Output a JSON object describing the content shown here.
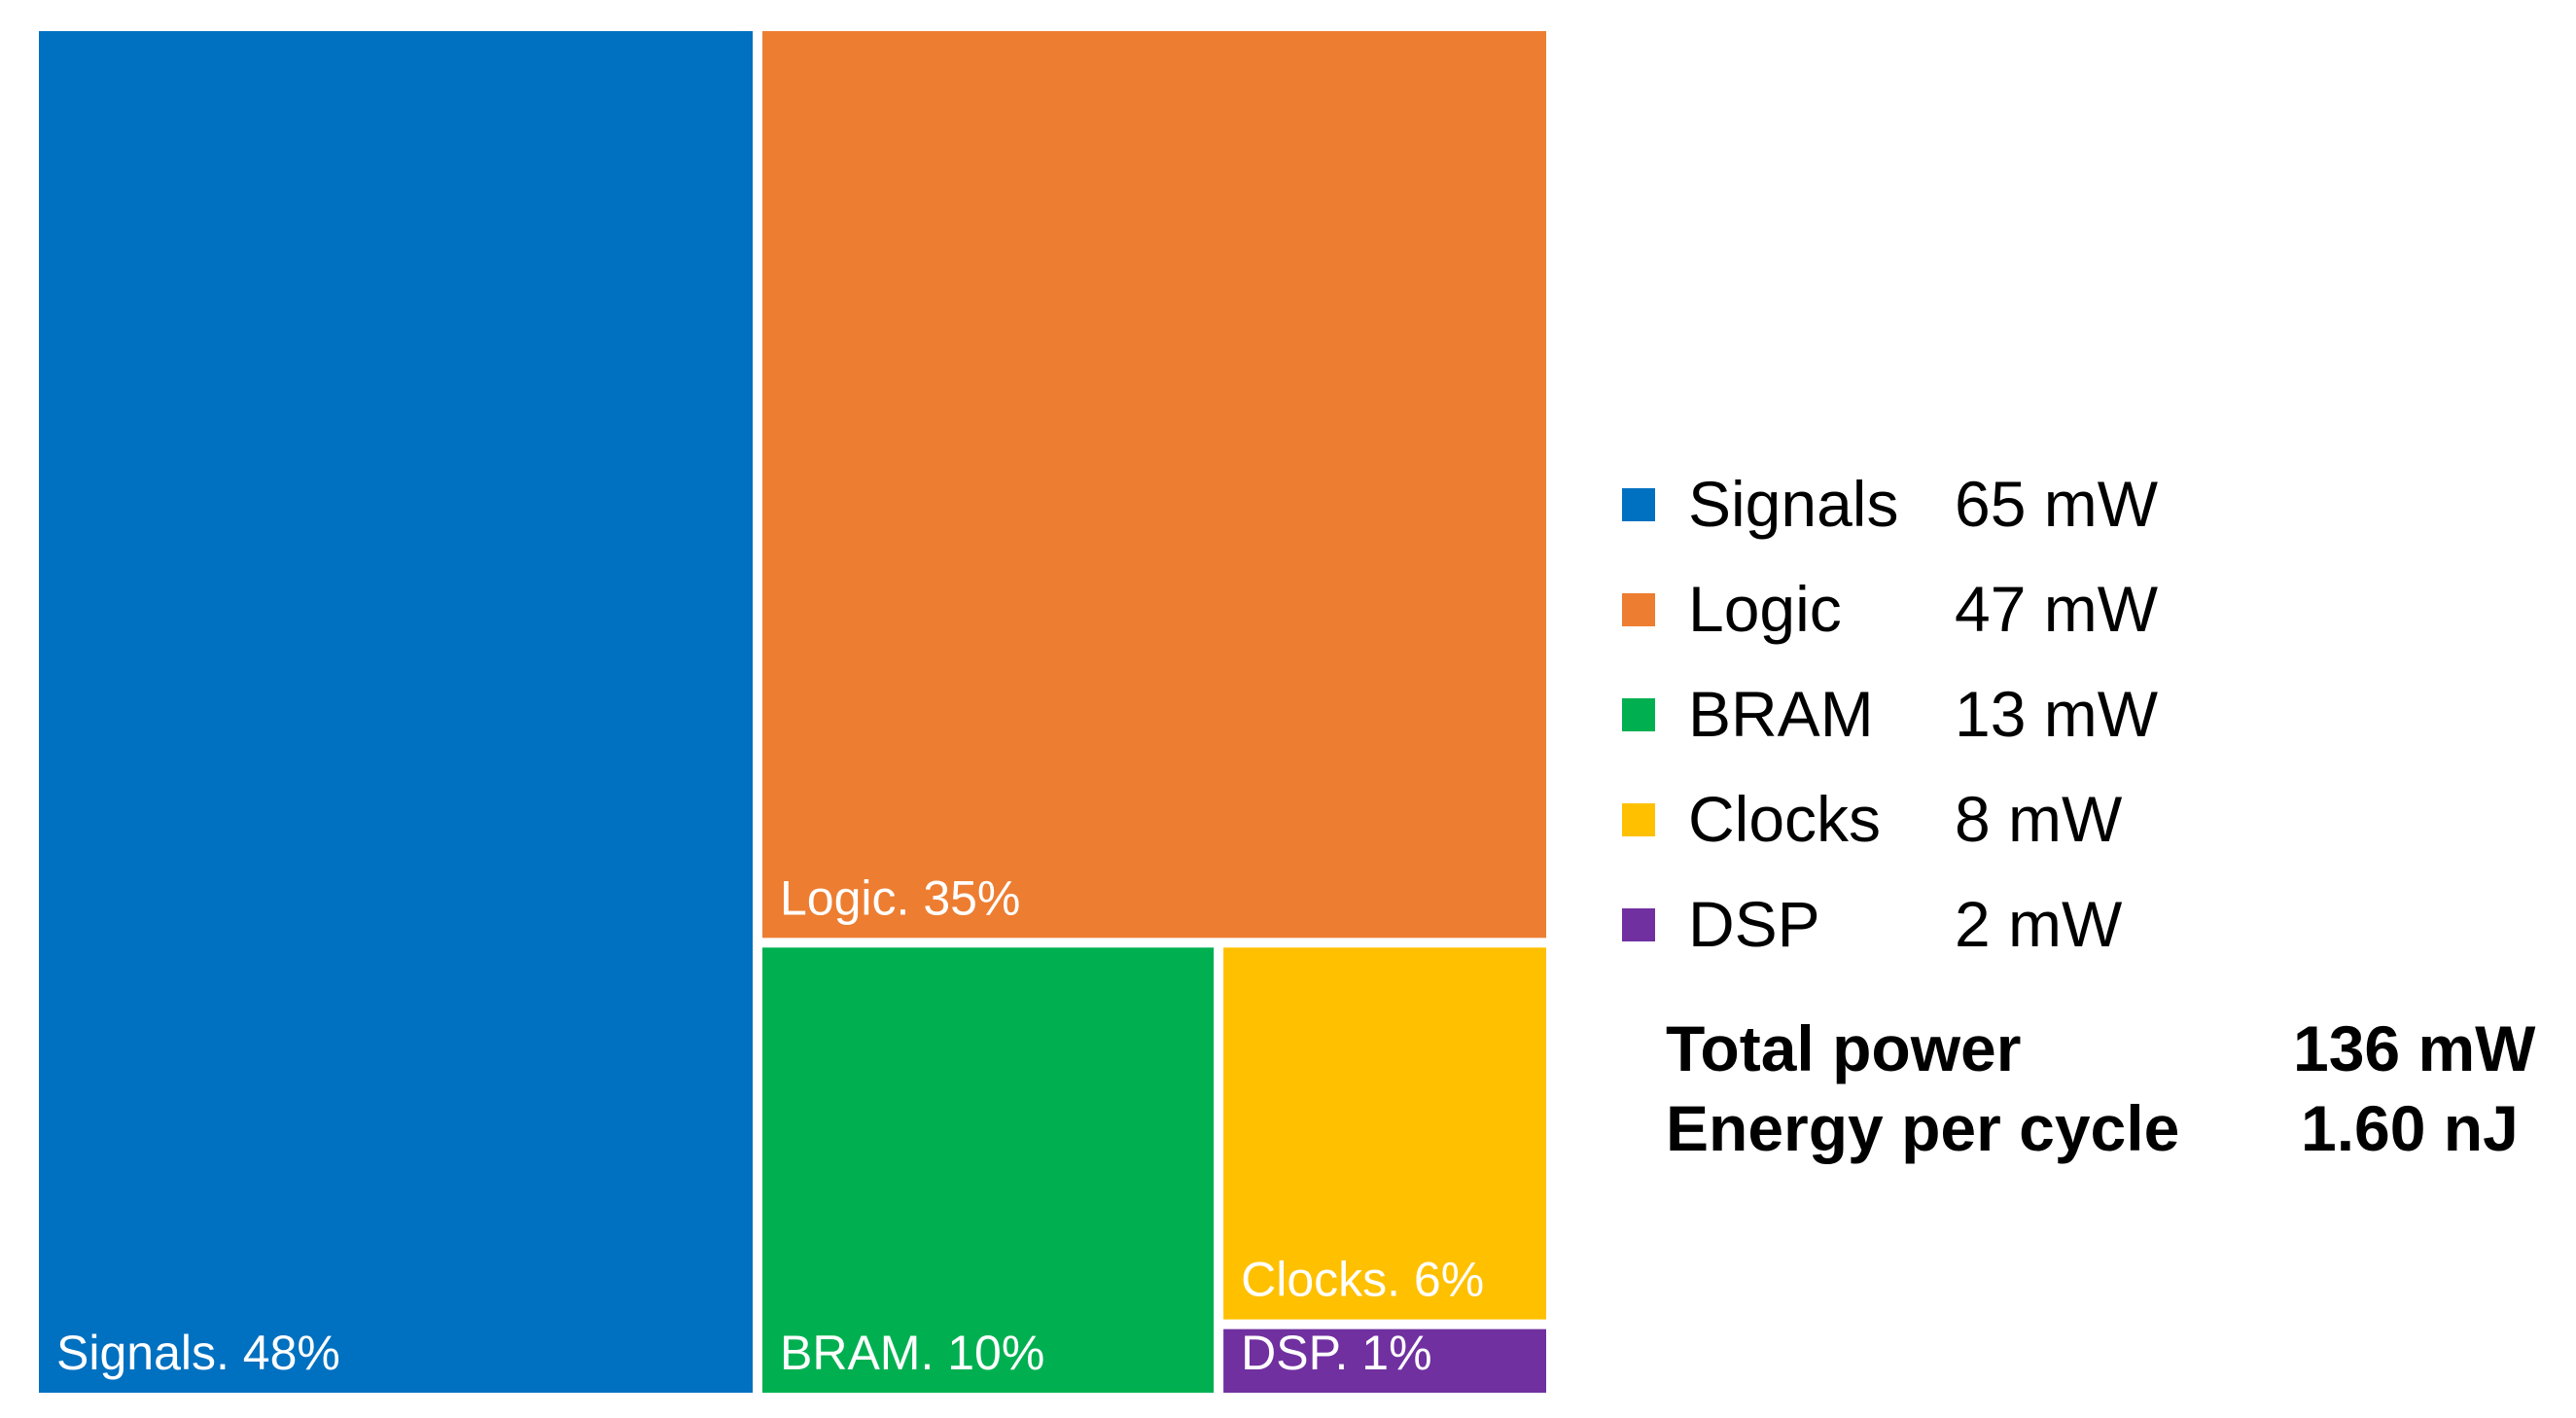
{
  "chart_data": {
    "type": "treemap",
    "title": "",
    "segments": [
      {
        "name": "Signals",
        "percent": 48,
        "power": "65 mW",
        "power_mw": 65,
        "label": "Signals. 48%",
        "color": "#0070C0"
      },
      {
        "name": "Logic",
        "percent": 35,
        "power": "47 mW",
        "power_mw": 47,
        "label": "Logic. 35%",
        "color": "#ED7D31"
      },
      {
        "name": "BRAM",
        "percent": 10,
        "power": "13 mW",
        "power_mw": 13,
        "label": "BRAM. 10%",
        "color": "#00B050"
      },
      {
        "name": "Clocks",
        "percent": 6,
        "power": "8 mW",
        "power_mw": 8,
        "label": "Clocks. 6%",
        "color": "#FFC000"
      },
      {
        "name": "DSP",
        "percent": 1,
        "power": "2 mW",
        "power_mw": 2,
        "label": "DSP. 1%",
        "color": "#7030A0"
      }
    ],
    "summary": {
      "total_label": "Total power",
      "total_value": "136 mW",
      "energy_label": "Energy per cycle",
      "energy_value": "1.60 nJ"
    }
  }
}
